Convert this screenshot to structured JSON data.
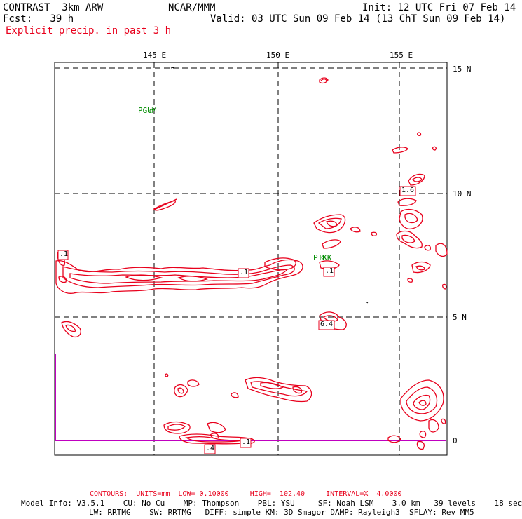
{
  "header": {
    "title": "CONTRAST  3km ARW",
    "center": "NCAR/MMM",
    "init": "Init: 12 UTC Fri 07 Feb 14",
    "fcst": "Fcst:   39 h",
    "valid": "Valid: 03 UTC Sun 09 Feb 14 (13 ChT Sun 09 Feb 14)",
    "field": "Explicit precip. in past 3 h"
  },
  "axes": {
    "lon_labels": [
      "145 E",
      "150 E",
      "155 E"
    ],
    "lat_labels": [
      "15 N",
      "10 N",
      "5 N",
      "0"
    ]
  },
  "stations": [
    {
      "name": "PGUM",
      "color": "#008c00"
    },
    {
      "name": "PTKK",
      "color": "#008c00"
    }
  ],
  "value_labels": [
    ".1",
    ".1",
    ".1",
    "1.6",
    "6.4",
    ".1",
    ".4"
  ],
  "contour_info": {
    "contours": "CONTOURS:  UNITS=mm  LOW= 0.10000     HIGH=  102.40     INTERVAL=X  4.0000"
  },
  "model_info": {
    "line1": "Model Info: V3.5.1    CU: No Cu    MP: Thompson    PBL: YSU     SF: Noah LSM    3.0 km   39 levels    18 sec",
    "line2": "LW: RRTMG    SW: RRTMG   DIFF: simple KM: 3D Smagor DAMP: Rayleigh3  SFLAY: Rev MM5"
  },
  "colors": {
    "contour": "#e8001c",
    "station": "#008c00",
    "equator_line": "#c000c0"
  }
}
